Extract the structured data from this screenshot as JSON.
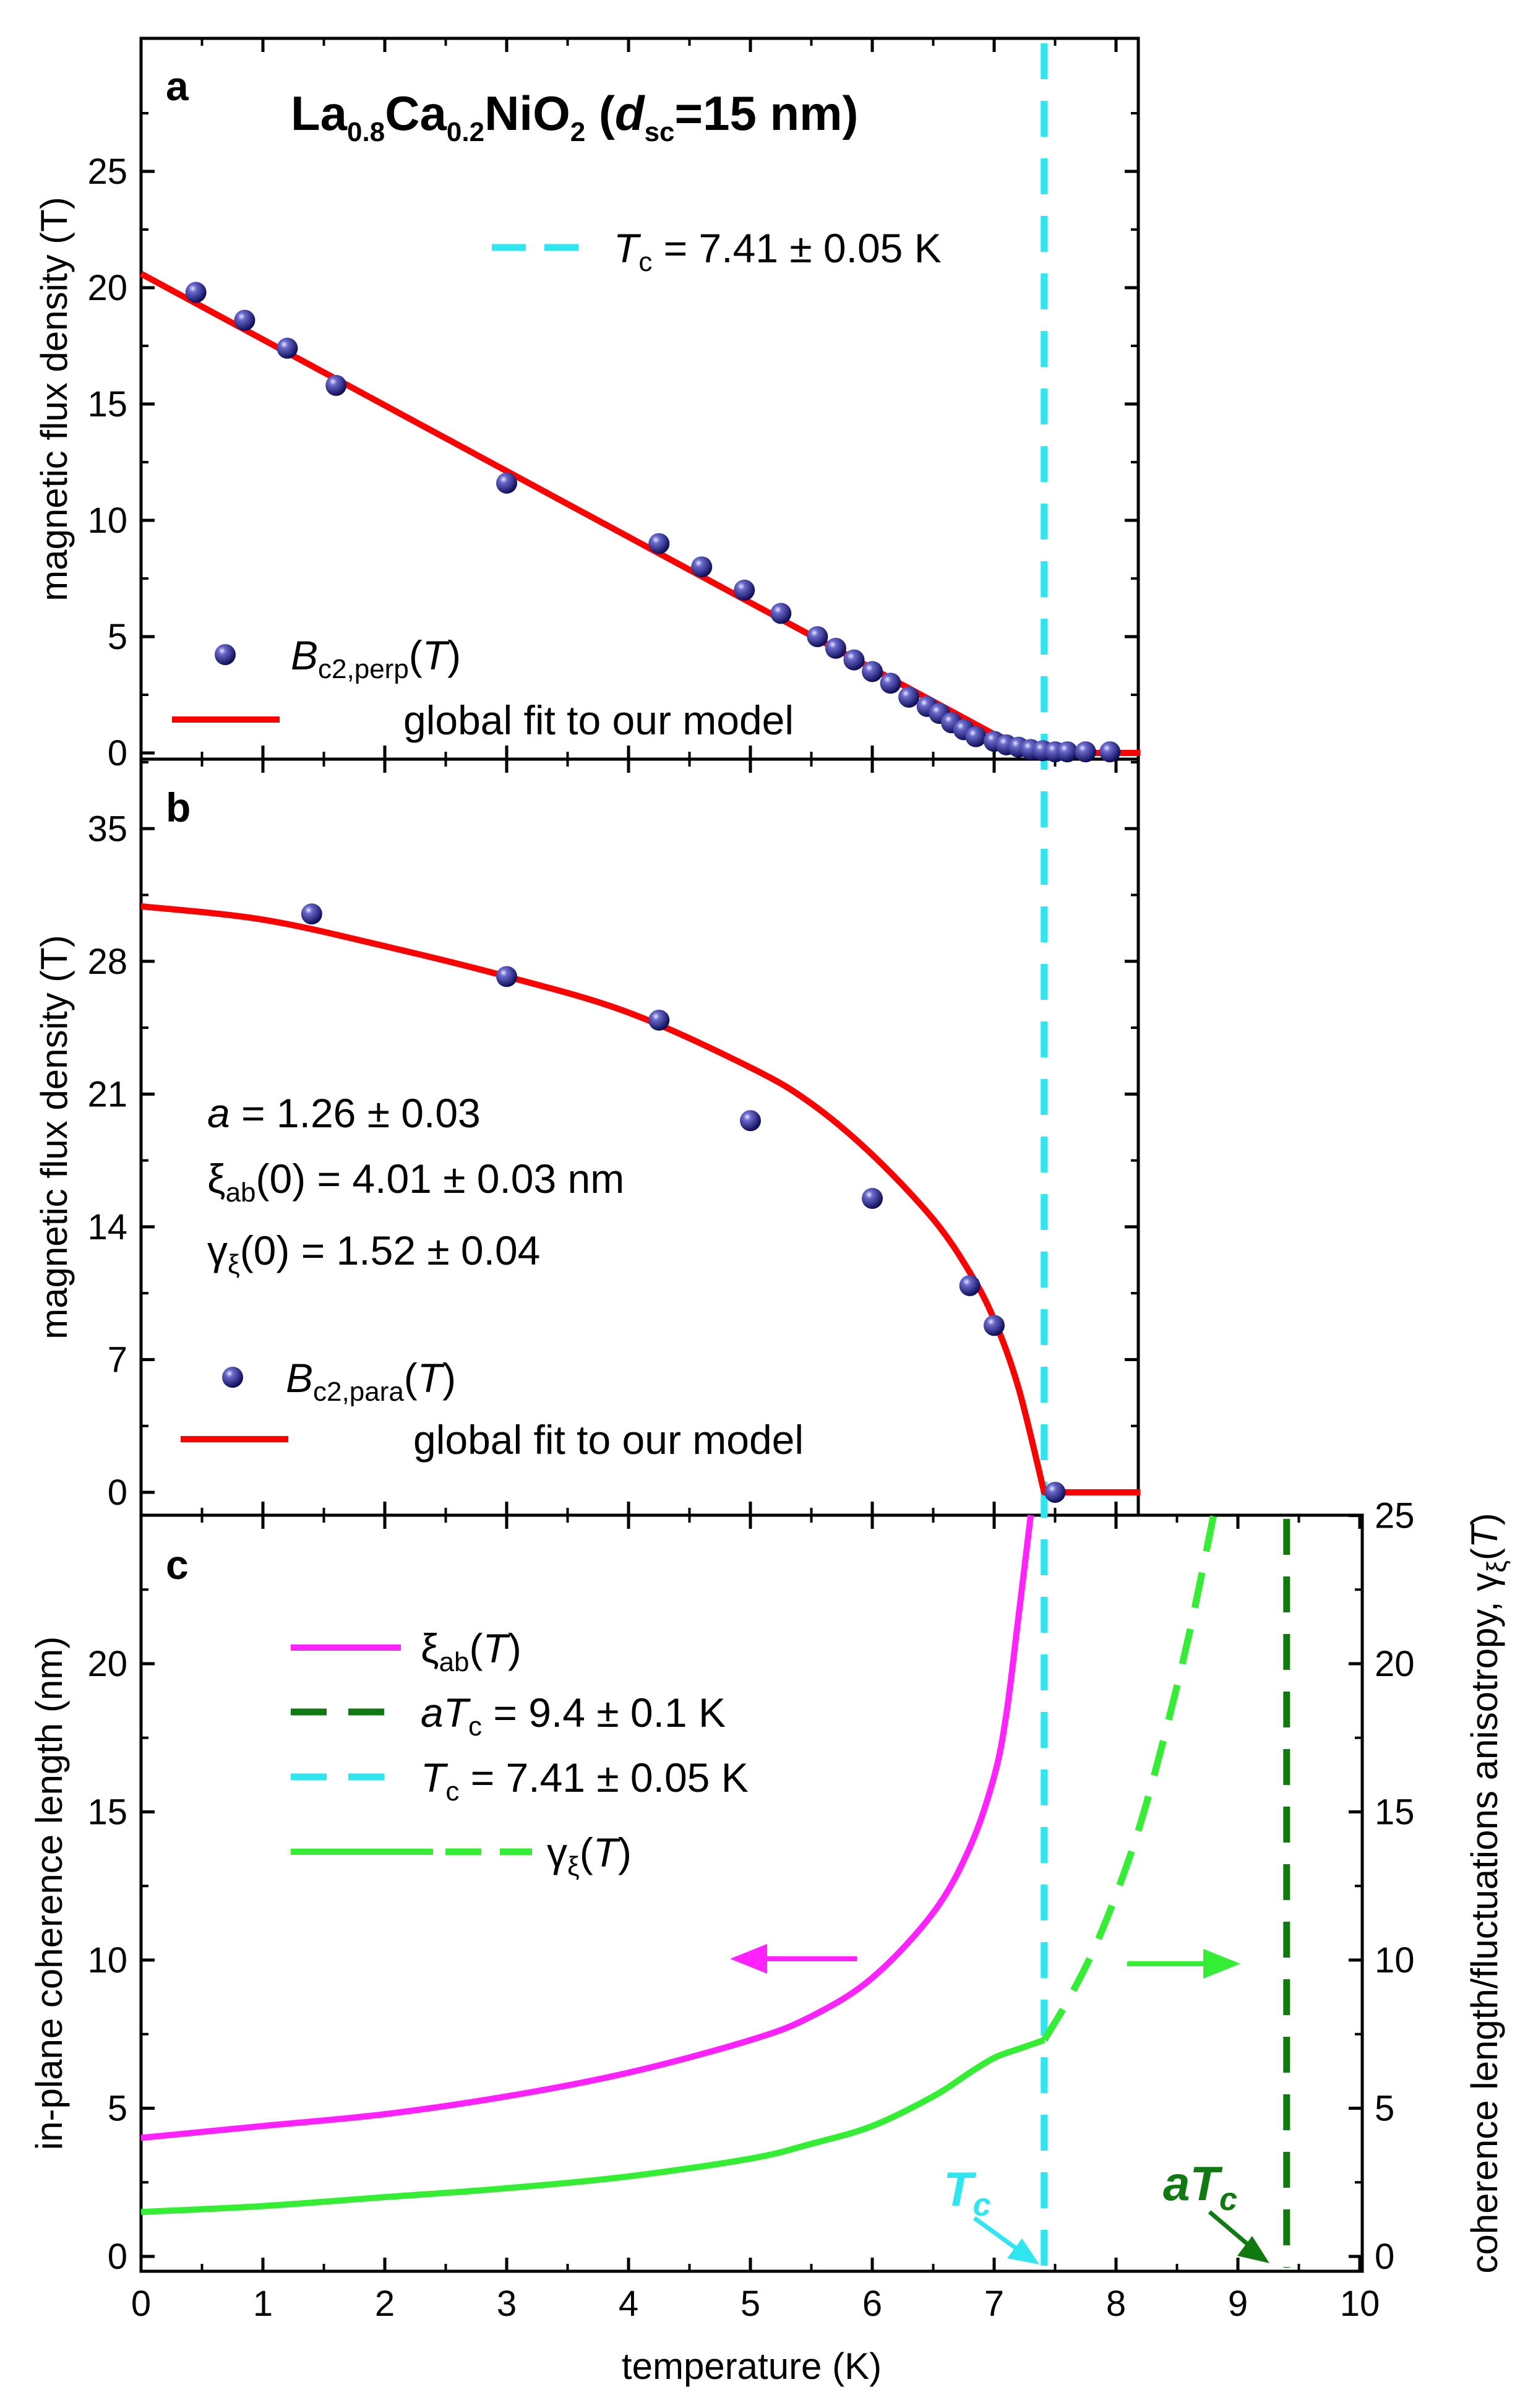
{
  "colors": {
    "data_points": "#1a1a7a",
    "fit": "#ff0000",
    "tc_line": "#2ee6f0",
    "atc_line": "#107a10",
    "xi_ab": "#ff22ff",
    "gamma": "#33ee33"
  },
  "x_axis": {
    "label": "temperature (K)",
    "range": [
      0,
      10
    ],
    "ticks": [
      "0",
      "1",
      "2",
      "3",
      "4",
      "5",
      "6",
      "7",
      "8",
      "9",
      "10"
    ]
  },
  "panel_a": {
    "letter": "a",
    "title": {
      "main1": "La",
      "sub1": "0.8",
      "main2": "Ca",
      "sub2": "0.2",
      "main3": "NiO",
      "sub3": "2",
      "paren_open": " (",
      "d_main": "d",
      "d_sub": "sc",
      "thickness": "=15 nm)"
    },
    "y_label": "magnetic flux density (T)",
    "y_ticks": [
      "0",
      "5",
      "10",
      "15",
      "20",
      "25"
    ],
    "tc_legend": {
      "symbol": "T",
      "sub": "c",
      "text": " = 7.41 ± 0.05 K"
    },
    "legend_points": {
      "symbol": "B",
      "sub": "c2,perp",
      "paren": "(",
      "var": "T",
      "close": ")"
    },
    "legend_fit": "global fit to our model"
  },
  "panel_b": {
    "letter": "b",
    "y_label": "magnetic flux density (T)",
    "y_ticks": [
      "0",
      "7",
      "14",
      "21",
      "28",
      "35"
    ],
    "param_a": {
      "symbol": "a",
      "text": " = 1.26 ± 0.03"
    },
    "param_xi": {
      "symbol": "ξ",
      "sub": "ab",
      "text": "(0) = 4.01 ±  0.03 nm"
    },
    "param_gamma": {
      "symbol": "γ",
      "sub": "ξ",
      "text": "(0) = 1.52 ± 0.04"
    },
    "legend_points": {
      "symbol": "B",
      "sub": "c2,para",
      "paren": "(",
      "var": "T",
      "close": ")"
    },
    "legend_fit": "global fit to our model"
  },
  "panel_c": {
    "letter": "c",
    "y_label_left": "in-plane coherence length (nm)",
    "y_label_right": {
      "text": "coherence length/fluctuations anisotropy, γ",
      "sub": "ξ",
      "paren": "(",
      "var": "T",
      "close": ")"
    },
    "y_ticks_left": [
      "0",
      "5",
      "10",
      "15",
      "20"
    ],
    "y_ticks_right": [
      "0",
      "5",
      "10",
      "15",
      "20",
      "25"
    ],
    "legend_xi": {
      "symbol": "ξ",
      "sub": "ab",
      "paren": "(",
      "var": "T",
      "close": ")"
    },
    "legend_atc": {
      "symbol": "aT",
      "sub": "c",
      "text": " = 9.4 ± 0.1 K"
    },
    "legend_tc": {
      "symbol": "T",
      "sub": "c",
      "text": " = 7.41 ± 0.05 K"
    },
    "legend_gamma": {
      "symbol": "γ",
      "sub": "ξ",
      "paren": "(",
      "var": "T",
      "close": ")"
    },
    "annot_tc": {
      "main": "T",
      "sub": "c"
    },
    "annot_atc": {
      "main": "aT",
      "sub": "c"
    }
  },
  "chart_data": [
    {
      "panel": "a",
      "type": "scatter",
      "xlabel": "temperature (K)",
      "ylabel": "magnetic flux density (T)",
      "xlim": [
        0,
        10
      ],
      "ylim": [
        0,
        25
      ],
      "series": [
        {
          "name": "Bc2,perp(T)",
          "x": [
            0.45,
            0.85,
            1.2,
            1.6,
            3.0,
            4.25,
            4.6,
            4.95,
            5.25,
            5.55,
            5.7,
            5.85,
            6.0,
            6.15,
            6.3,
            6.45,
            6.55,
            6.65,
            6.75,
            6.85,
            7.0,
            7.1,
            7.2,
            7.3,
            7.4,
            7.5,
            7.6,
            7.75,
            7.95
          ],
          "y": [
            19.8,
            18.6,
            17.4,
            15.8,
            11.6,
            9.0,
            8.0,
            7.0,
            6.0,
            5.0,
            4.5,
            4.0,
            3.5,
            3.0,
            2.4,
            2.0,
            1.7,
            1.3,
            1.0,
            0.7,
            0.5,
            0.35,
            0.25,
            0.15,
            0.1,
            0.05,
            0.05,
            0.05,
            0.05
          ]
        },
        {
          "name": "global fit to our model",
          "type": "line",
          "x": [
            0,
            7.0,
            7.41,
            8.2
          ],
          "y": [
            20.6,
            0.8,
            0,
            0
          ]
        }
      ],
      "reference_lines": [
        {
          "axis": "x",
          "value": 7.41,
          "label": "Tc = 7.41 ± 0.05 K"
        }
      ]
    },
    {
      "panel": "b",
      "type": "scatter",
      "xlabel": "temperature (K)",
      "ylabel": "magnetic flux density (T)",
      "xlim": [
        0,
        10
      ],
      "ylim": [
        0,
        35
      ],
      "series": [
        {
          "name": "Bc2,para(T)",
          "x": [
            1.4,
            3.0,
            4.25,
            5.0,
            6.0,
            6.8,
            7.0,
            7.5
          ],
          "y": [
            30.5,
            27.2,
            24.9,
            19.6,
            15.5,
            10.9,
            8.8,
            0.0
          ]
        },
        {
          "name": "global fit to our model",
          "type": "line",
          "x": [
            0,
            1,
            2,
            3,
            4,
            5,
            5.5,
            6,
            6.5,
            6.8,
            7.0,
            7.2,
            7.41,
            8.2
          ],
          "y": [
            30.9,
            30.2,
            28.8,
            27.2,
            25.3,
            22.4,
            20.5,
            17.8,
            14.4,
            11.6,
            9.1,
            5.5,
            0,
            0
          ]
        }
      ],
      "reference_lines": [
        {
          "axis": "x",
          "value": 7.41
        }
      ]
    },
    {
      "panel": "c",
      "type": "line",
      "xlabel": "temperature (K)",
      "ylabel": "in-plane coherence length (nm)",
      "ylabel_right": "coherence length/fluctuations anisotropy, γξ(T)",
      "xlim": [
        0,
        10
      ],
      "ylim": [
        0,
        25
      ],
      "ylim_right": [
        0,
        25
      ],
      "series": [
        {
          "name": "ξab(T)",
          "axis": "left",
          "x": [
            0,
            1,
            2,
            3,
            4,
            5,
            5.5,
            6,
            6.5,
            6.8,
            7.0,
            7.1,
            7.2,
            7.3
          ],
          "y": [
            4.0,
            4.4,
            4.8,
            5.4,
            6.2,
            7.3,
            8.1,
            9.4,
            11.6,
            13.8,
            16.2,
            18.3,
            21.6,
            27.0
          ]
        },
        {
          "name": "γξ(T)",
          "axis": "right",
          "x": [
            0,
            1,
            2,
            3,
            4,
            5,
            5.5,
            6,
            6.5,
            6.8,
            7.0,
            7.2,
            7.41
          ],
          "y": [
            1.5,
            1.7,
            2.0,
            2.3,
            2.7,
            3.3,
            3.8,
            4.4,
            5.4,
            6.2,
            6.7,
            7.0,
            7.3
          ]
        },
        {
          "name": "γξ(T) (dashed, above Tc)",
          "axis": "right",
          "x": [
            7.41,
            7.6,
            7.8,
            8.0,
            8.2,
            8.4,
            8.6,
            8.8
          ],
          "y": [
            7.3,
            8.6,
            10.2,
            12.2,
            14.6,
            17.6,
            21.0,
            25.0
          ]
        }
      ],
      "reference_lines": [
        {
          "axis": "x",
          "value": 7.41,
          "label": "Tc = 7.41 ± 0.05 K"
        },
        {
          "axis": "x",
          "value": 9.4,
          "label": "aTc = 9.4 ± 0.1 K"
        }
      ]
    }
  ]
}
